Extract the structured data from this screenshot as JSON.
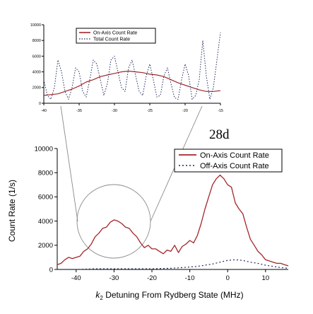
{
  "colors": {
    "on_axis": "#a3262a",
    "off_axis": "#1f2a5a",
    "zoom_lines": "#8a8a8a",
    "axis": "#000000"
  },
  "chart_data": [
    {
      "type": "line",
      "id": "main",
      "title": "28d",
      "xlabel_sub": "2",
      "xlabel_prefix": "k",
      "xlabel_rest": " Detuning From Rydberg State (MHz)",
      "ylabel": "Count Rate (1/s)",
      "xlim": [
        -45,
        16
      ],
      "ylim": [
        0,
        10000
      ],
      "xticks": [
        -40,
        -30,
        -20,
        -10,
        0,
        10
      ],
      "xtick_labels": [
        "-40",
        "-30",
        "-20",
        "-10",
        "0",
        "10"
      ],
      "yticks": [
        0,
        2000,
        4000,
        6000,
        8000,
        10000
      ],
      "ytick_labels": [
        "0",
        "2000",
        "4000",
        "6000",
        "8000",
        "10000"
      ],
      "legend_position": "top-right",
      "series": [
        {
          "name": "On-Axis Count Rate",
          "style": "solid",
          "x": [
            -45,
            -44,
            -43,
            -42,
            -41,
            -40,
            -39,
            -38,
            -37,
            -36,
            -35,
            -34,
            -33,
            -32,
            -31,
            -30,
            -29,
            -28,
            -27,
            -26,
            -25,
            -24,
            -23,
            -22,
            -21,
            -20,
            -19,
            -18,
            -17,
            -16,
            -15,
            -14,
            -13,
            -12,
            -11,
            -10,
            -9,
            -8,
            -7,
            -6,
            -5,
            -4,
            -3,
            -2,
            -1,
            0,
            1,
            2,
            3,
            4,
            5,
            6,
            7,
            8,
            9,
            10,
            11,
            12,
            13,
            14,
            15,
            16
          ],
          "y": [
            400,
            500,
            800,
            1000,
            900,
            1000,
            1100,
            1500,
            1700,
            2100,
            2700,
            3000,
            3400,
            3500,
            3900,
            4100,
            4000,
            3800,
            3500,
            3400,
            3000,
            2700,
            2200,
            1800,
            2000,
            1700,
            1700,
            1500,
            1300,
            1600,
            1500,
            2000,
            1400,
            1900,
            2100,
            2400,
            2200,
            2800,
            3800,
            5000,
            6000,
            7000,
            7500,
            7800,
            7500,
            7000,
            6800,
            5500,
            5000,
            4600,
            3500,
            2500,
            2000,
            1500,
            1200,
            800,
            700,
            600,
            500,
            500,
            400,
            300
          ]
        },
        {
          "name": "Off-Axis Count Rate",
          "style": "dotted",
          "x": [
            -45,
            -40,
            -35,
            -30,
            -25,
            -20,
            -15,
            -12,
            -10,
            -8,
            -6,
            -4,
            -2,
            0,
            2,
            4,
            6,
            8,
            10,
            12,
            14,
            16
          ],
          "y": [
            0,
            0,
            50,
            50,
            50,
            50,
            100,
            150,
            200,
            250,
            350,
            450,
            600,
            750,
            800,
            750,
            600,
            500,
            350,
            250,
            150,
            100
          ]
        }
      ]
    },
    {
      "type": "line",
      "id": "inset",
      "xlim": [
        -40,
        -15
      ],
      "ylim": [
        0,
        10000
      ],
      "xticks": [
        -40,
        -35,
        -30,
        -25,
        -20,
        -15
      ],
      "xtick_labels": [
        "-40",
        "-35",
        "-30",
        "-25",
        "-20",
        "-15"
      ],
      "yticks": [
        0,
        2000,
        4000,
        6000,
        8000,
        10000
      ],
      "ytick_labels": [
        "0",
        "2000",
        "4000",
        "6000",
        "8000",
        "10000"
      ],
      "legend_position": "top-left",
      "series": [
        {
          "name": "On-Axis Count Rate",
          "style": "solid",
          "x": [
            -40,
            -39,
            -38,
            -37,
            -36,
            -35,
            -34,
            -33,
            -32,
            -31,
            -30,
            -29,
            -28,
            -27,
            -26,
            -25,
            -24,
            -23,
            -22,
            -21,
            -20,
            -19,
            -18,
            -17,
            -16,
            -15
          ],
          "y": [
            1000,
            1100,
            1200,
            1500,
            1800,
            2200,
            2700,
            3000,
            3400,
            3600,
            3800,
            4000,
            4100,
            4000,
            3900,
            3700,
            3600,
            3400,
            3000,
            2600,
            2300,
            2000,
            1700,
            1500,
            1500,
            1600
          ]
        },
        {
          "name": "Total Count Rate",
          "style": "dotted",
          "x": [
            -40,
            -39.5,
            -39,
            -38.5,
            -38,
            -37.5,
            -37,
            -36.5,
            -36,
            -35.5,
            -35,
            -34.5,
            -34,
            -33.5,
            -33,
            -32.5,
            -32,
            -31.5,
            -31,
            -30.5,
            -30,
            -29.5,
            -29,
            -28.5,
            -28,
            -27.5,
            -27,
            -26.5,
            -26,
            -25.5,
            -25,
            -24.5,
            -24,
            -23.5,
            -23,
            -22.5,
            -22,
            -21.5,
            -21,
            -20.5,
            -20,
            -19.5,
            -19,
            -18.5,
            -18,
            -17.5,
            -17,
            -16.5,
            -16,
            -15.5,
            -15
          ],
          "y": [
            3000,
            1000,
            500,
            2000,
            5500,
            4000,
            1500,
            500,
            2000,
            4500,
            4000,
            1500,
            800,
            3000,
            5500,
            5000,
            3000,
            1000,
            2500,
            5500,
            6000,
            4000,
            2000,
            1500,
            4500,
            5500,
            3500,
            1500,
            1000,
            3500,
            5000,
            3000,
            800,
            1000,
            3500,
            4500,
            2500,
            700,
            500,
            3000,
            5000,
            3500,
            500,
            1000,
            3000,
            8000,
            3500,
            500,
            2000,
            5500,
            9000
          ]
        }
      ]
    }
  ]
}
